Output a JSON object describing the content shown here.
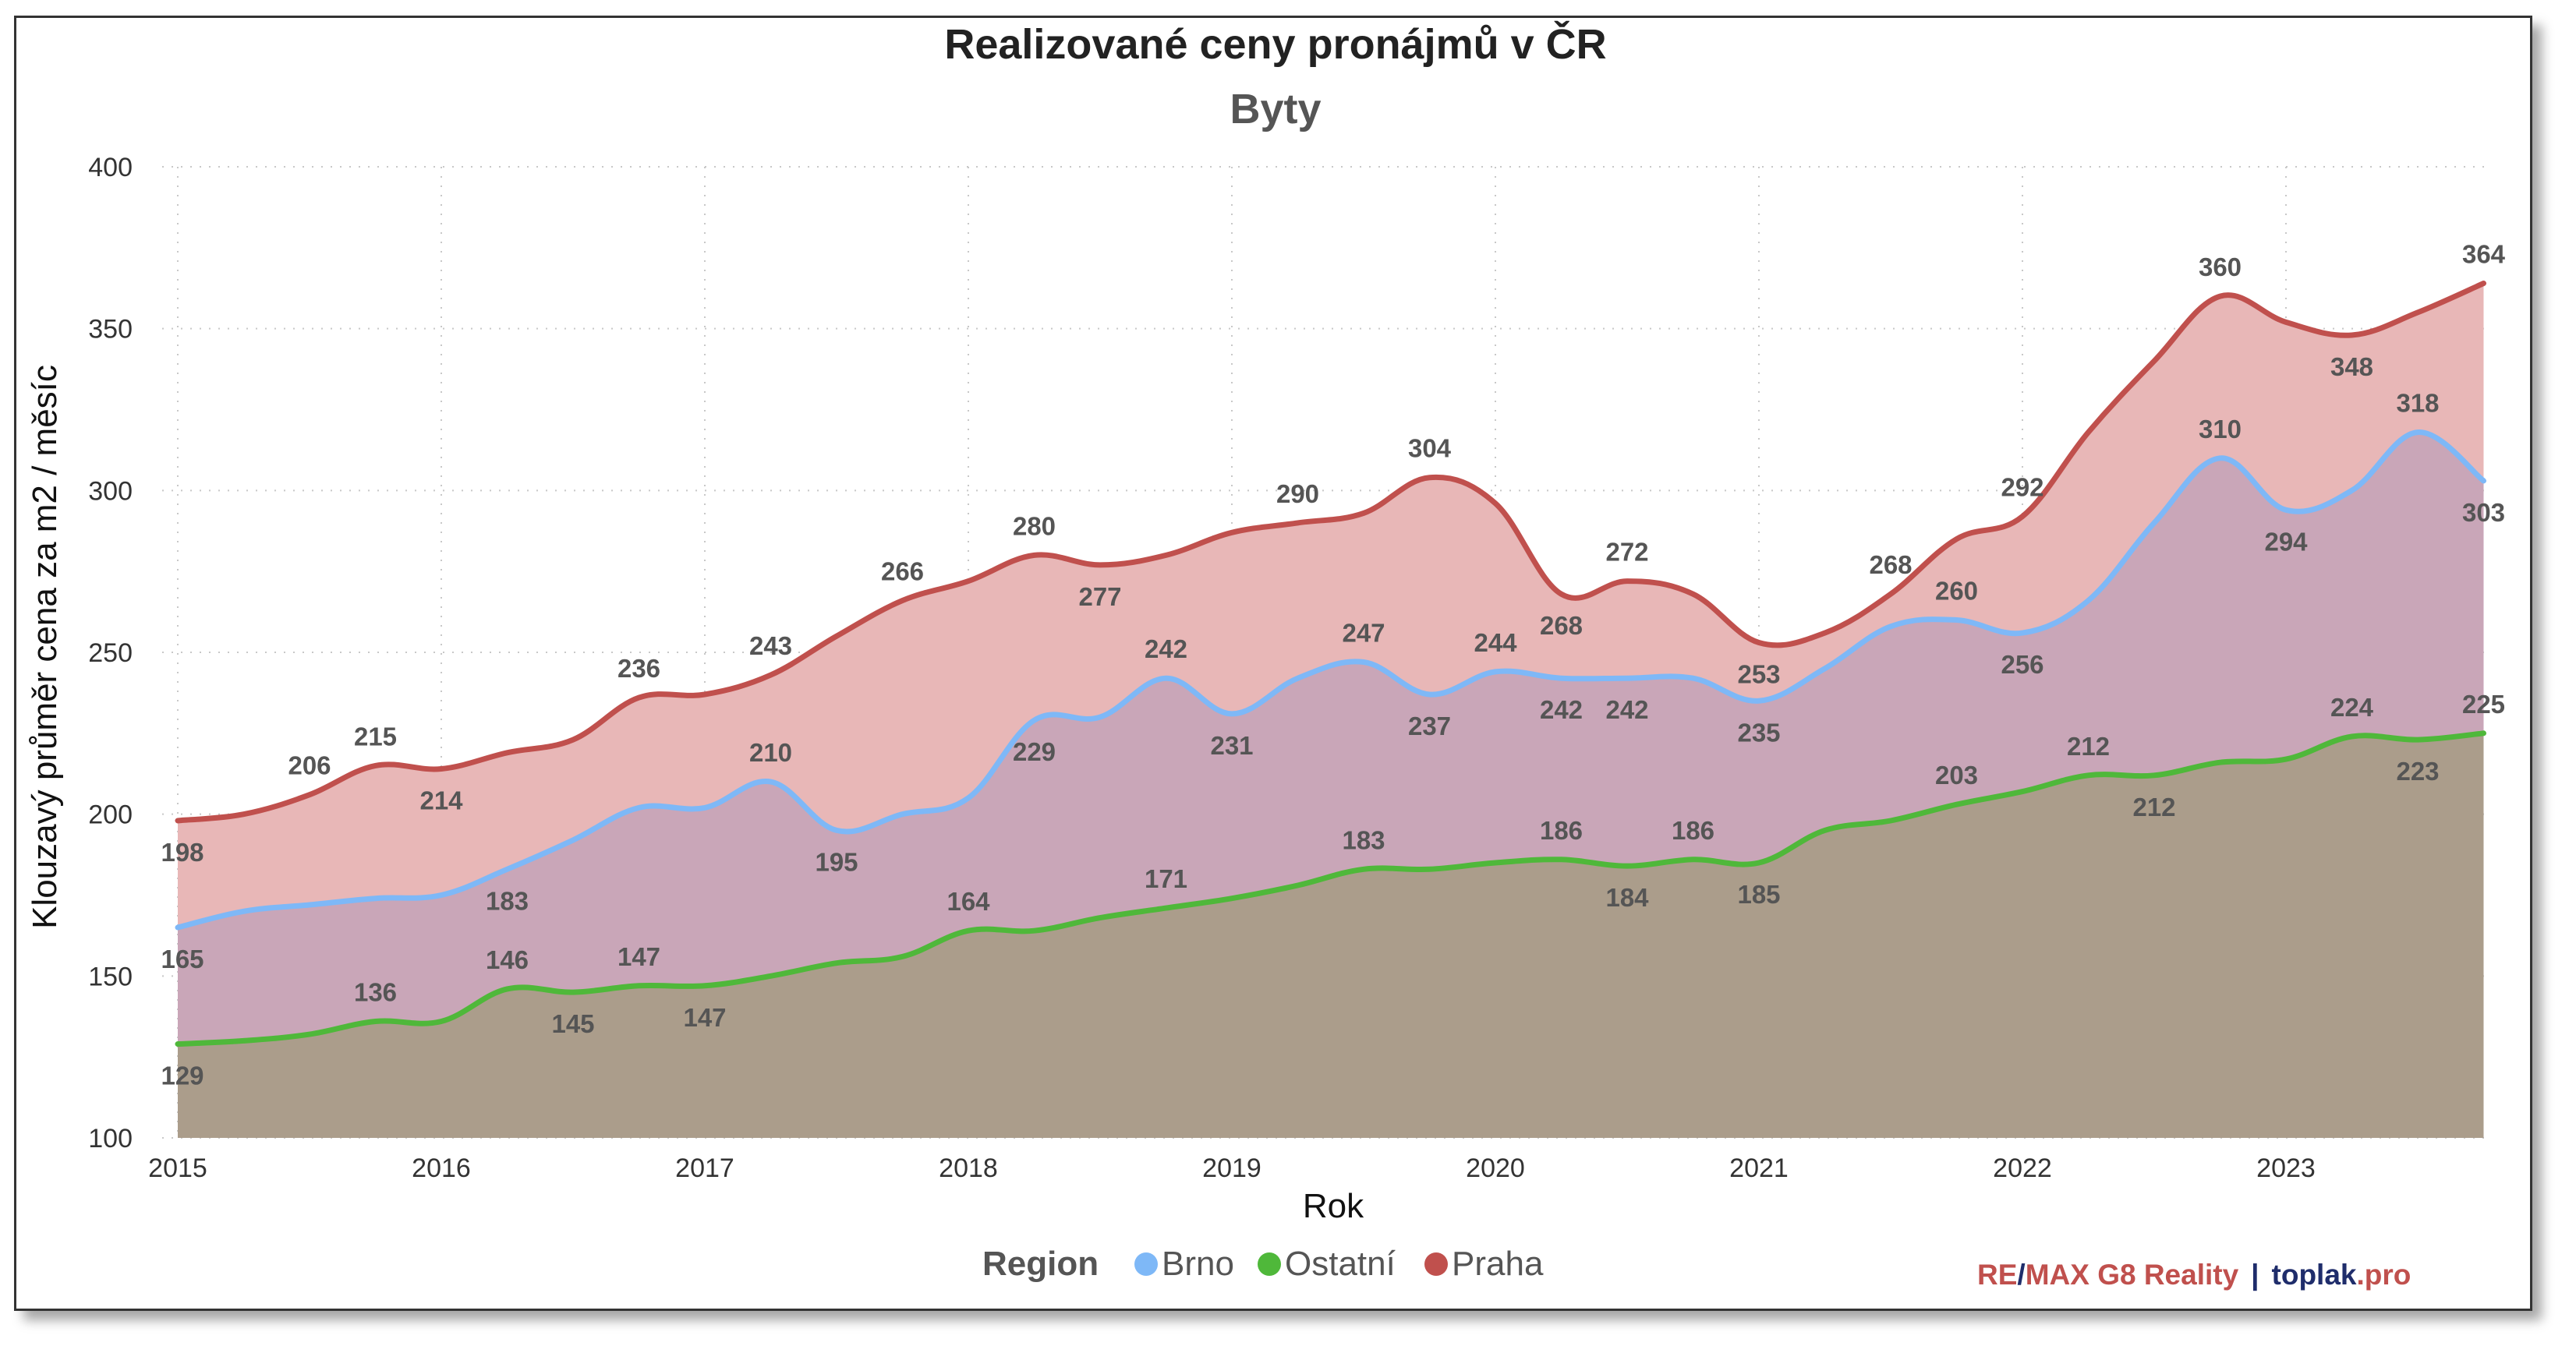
{
  "colors": {
    "praha": "#c0504d",
    "brno": "#7eb8f7",
    "ostatni": "#4fb83a",
    "praha_fill": "#e8b7b7",
    "brno_fill": "#c9a6b8",
    "ostatni_fill": "#ab9d8b",
    "credit_dark": "#1f2d6b"
  },
  "chart_data": {
    "type": "area",
    "title": "Realizované ceny pronájmů v ČR",
    "subtitle": "Byty",
    "xlabel": "Rok",
    "ylabel": "Klouzavý průměr cena za m2 / měsíc",
    "xlim": [
      2015,
      2023.75
    ],
    "ylim": [
      100,
      400
    ],
    "yticks": [
      "100",
      "150",
      "200",
      "250",
      "300",
      "350",
      "400"
    ],
    "xticks": [
      "2015",
      "2016",
      "2017",
      "2018",
      "2019",
      "2020",
      "2021",
      "2022",
      "2023"
    ],
    "grid": true,
    "x": [
      2015,
      2015.25,
      2015.5,
      2015.75,
      2016,
      2016.25,
      2016.5,
      2016.75,
      2017,
      2017.25,
      2017.5,
      2017.75,
      2018,
      2018.25,
      2018.5,
      2018.75,
      2019,
      2019.25,
      2019.5,
      2019.75,
      2020,
      2020.25,
      2020.5,
      2020.75,
      2021,
      2021.25,
      2021.5,
      2021.75,
      2022,
      2022.25,
      2022.5,
      2022.75,
      2023,
      2023.25,
      2023.5,
      2023.75
    ],
    "series": [
      {
        "name": "Praha",
        "values": [
          198,
          200,
          206,
          215,
          214,
          219,
          223,
          236,
          237,
          243,
          255,
          266,
          272,
          280,
          277,
          280,
          287,
          290,
          293,
          304,
          296,
          268,
          272,
          268,
          253,
          256,
          268,
          285,
          292,
          318,
          340,
          360,
          352,
          348,
          355,
          364
        ],
        "labels": [
          "198",
          "",
          "206",
          "215",
          "214",
          "",
          "",
          "236",
          "",
          "243",
          "",
          "266",
          "",
          "280",
          "277",
          "",
          "",
          "290",
          "",
          "304",
          "",
          "268",
          "272",
          "",
          "253",
          "",
          "268",
          "",
          "292",
          "",
          "",
          "360",
          "",
          "348",
          "",
          "364"
        ]
      },
      {
        "name": "Brno",
        "values": [
          165,
          170,
          172,
          174,
          175,
          183,
          192,
          202,
          202,
          210,
          195,
          200,
          205,
          229,
          230,
          242,
          231,
          242,
          247,
          237,
          244,
          242,
          242,
          242,
          235,
          245,
          258,
          260,
          256,
          266,
          290,
          310,
          294,
          300,
          318,
          303
        ],
        "labels": [
          "165",
          "",
          "",
          "",
          "",
          "183",
          "",
          "",
          "",
          "210",
          "195",
          "",
          "",
          "229",
          "",
          "242",
          "231",
          "",
          "247",
          "237",
          "244",
          "242",
          "242",
          "",
          "235",
          "",
          "",
          "260",
          "256",
          "",
          "",
          "310",
          "294",
          "",
          "318",
          "303"
        ]
      },
      {
        "name": "Ostatní",
        "values": [
          129,
          130,
          132,
          136,
          136,
          146,
          145,
          147,
          147,
          150,
          154,
          156,
          164,
          164,
          168,
          171,
          174,
          178,
          183,
          183,
          185,
          186,
          184,
          186,
          185,
          195,
          198,
          203,
          207,
          212,
          212,
          216,
          217,
          224,
          223,
          225
        ],
        "labels": [
          "129",
          "",
          "",
          "136",
          "",
          "146",
          "145",
          "147",
          "147",
          "",
          "",
          "",
          "164",
          "",
          "",
          "171",
          "",
          "",
          "183",
          "",
          "",
          "186",
          "184",
          "186",
          "185",
          "",
          "",
          "203",
          "",
          "212",
          "212",
          "",
          "",
          "224",
          "223",
          "225"
        ]
      }
    ],
    "legend": {
      "title": "Region",
      "items": [
        "Brno",
        "Ostatní",
        "Praha"
      ],
      "position": "bottom"
    }
  },
  "credit": {
    "re": "RE",
    "slash": "/",
    "max": "MAX G8 Reality",
    "sep": "|",
    "toplak": "toplak",
    "pro": ".pro"
  }
}
